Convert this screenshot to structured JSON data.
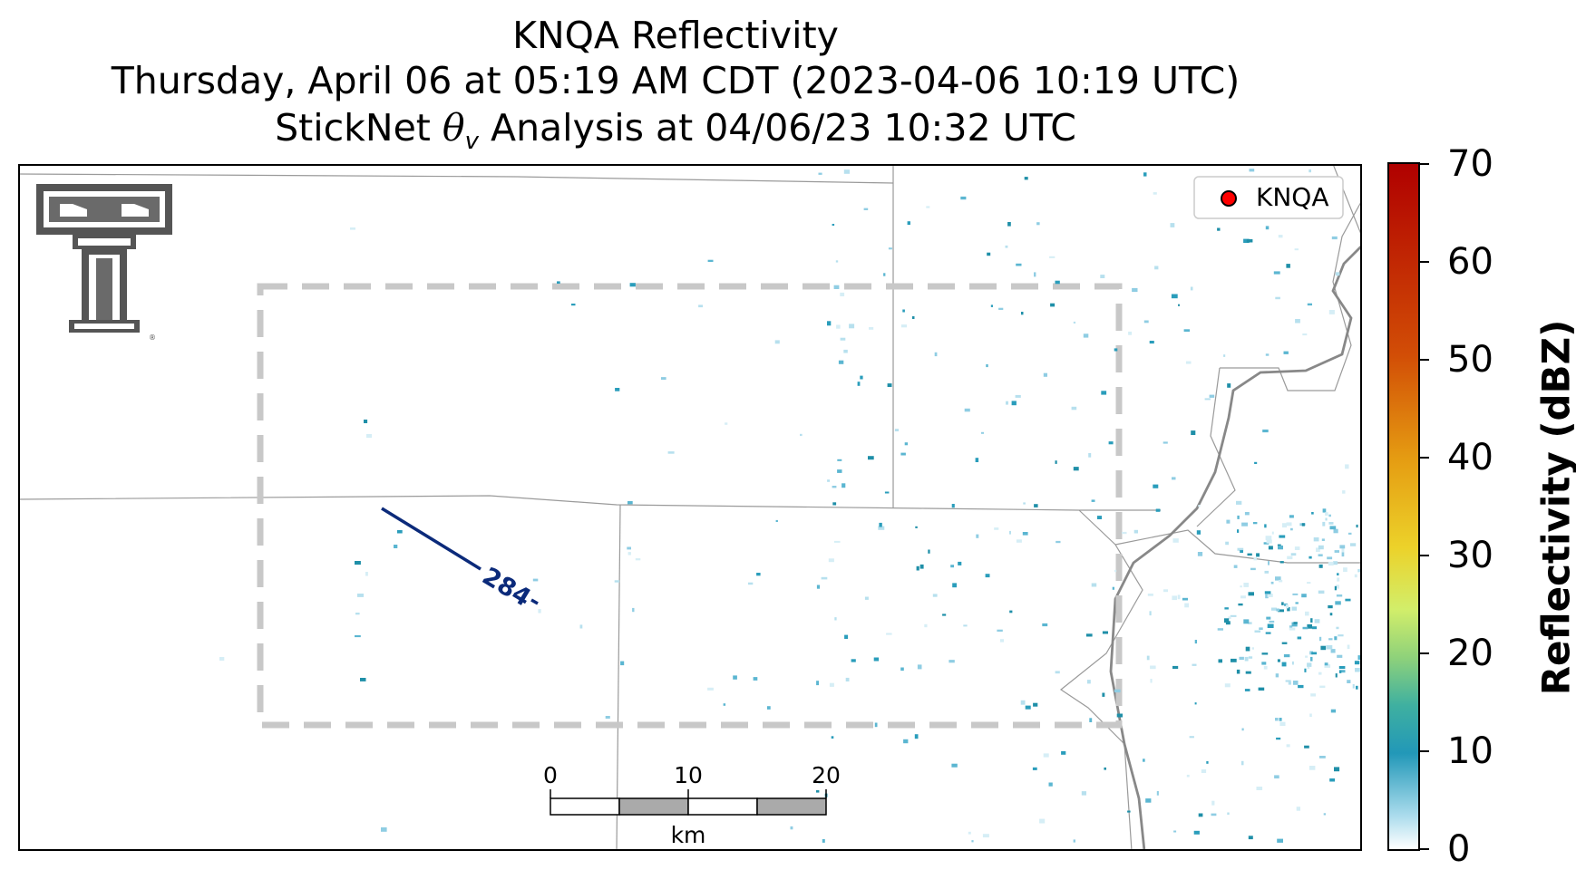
{
  "title": {
    "line1": "KNQA Reflectivity",
    "line2": "Thursday, April 06 at 05:19 AM CDT (2023-04-06 10:19 UTC)",
    "line3_prefix": "StickNet ",
    "line3_symbol": "θ",
    "line3_subscript": "v",
    "line3_suffix": " Analysis at 04/06/23 10:32 UTC"
  },
  "legend": {
    "label": "KNQA",
    "marker_color": "#ff0000"
  },
  "contour": {
    "label": "284",
    "color": "#0b2a7a"
  },
  "scale_bar": {
    "ticks": [
      "0",
      "10",
      "20"
    ],
    "unit": "km"
  },
  "colorbar": {
    "title": "Reflectivity (dBZ)",
    "min": 0,
    "max": 70,
    "ticks": [
      "0",
      "10",
      "20",
      "30",
      "40",
      "50",
      "60",
      "70"
    ]
  },
  "colors": {
    "dashed_box": "#c8c8c8",
    "boundary": "#999999",
    "river": "#888888",
    "logo": "#555555"
  }
}
